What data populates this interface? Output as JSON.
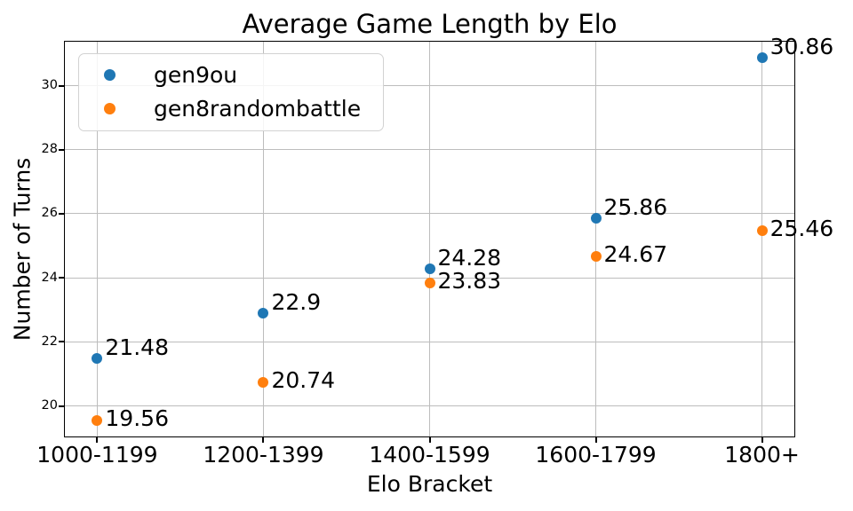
{
  "chart_data": {
    "type": "scatter",
    "title": "Average Game Length by Elo",
    "xlabel": "Elo Bracket",
    "ylabel": "Number of Turns",
    "categories": [
      "1000-1199",
      "1200-1399",
      "1400-1599",
      "1600-1799",
      "1800+"
    ],
    "series": [
      {
        "name": "gen9ou",
        "color": "#1f77b4",
        "values": [
          21.48,
          22.9,
          24.28,
          25.86,
          30.86
        ],
        "point_labels": [
          "21.48",
          "22.9",
          "24.28",
          "25.86",
          "30.86"
        ],
        "label_va": "above"
      },
      {
        "name": "gen8randombattle",
        "color": "#ff7f0e",
        "values": [
          19.56,
          20.74,
          23.83,
          24.67,
          25.46
        ],
        "point_labels": [
          "19.56",
          "20.74",
          "23.83",
          "24.67",
          "25.46"
        ],
        "label_va": "below"
      }
    ],
    "yticks": [
      20,
      22,
      24,
      26,
      28,
      30
    ],
    "ylim": [
      19.02,
      31.4
    ],
    "xlim": [
      -0.2,
      4.2
    ],
    "grid": true,
    "legend_position": "upper left",
    "grid_color": "#bdbdbd",
    "spine_color": "#000000",
    "text_color": "#000000",
    "background_color": "#ffffff"
  }
}
